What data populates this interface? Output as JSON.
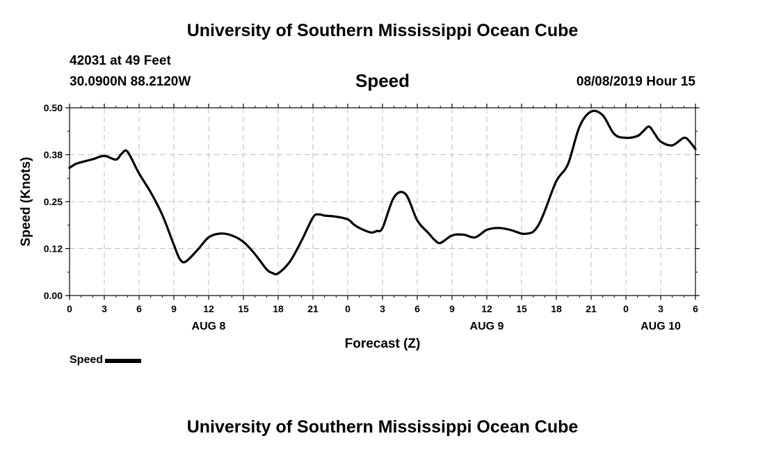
{
  "header": {
    "title": "University of Southern Mississippi Ocean Cube",
    "station": "42031 at 49 Feet",
    "coords": "30.0900N 88.2120W",
    "parameter": "Speed",
    "datetime": "08/08/2019 Hour 15"
  },
  "footer": {
    "title": "University of Southern Mississippi Ocean Cube"
  },
  "legend": {
    "label": "Speed",
    "color": "#000000"
  },
  "chart_data": {
    "type": "line",
    "xlabel": "Forecast (Z)",
    "ylabel": "Speed (Knots)",
    "xlim": [
      0,
      54
    ],
    "ylim": [
      0,
      0.5
    ],
    "grid": true,
    "y_ticks": [
      "0.00",
      "0.12",
      "0.25",
      "0.38",
      "0.50"
    ],
    "x_ticks": [
      "0",
      "3",
      "6",
      "9",
      "12",
      "15",
      "18",
      "21",
      "0",
      "3",
      "6",
      "9",
      "12",
      "15",
      "18",
      "21",
      "0",
      "3",
      "6"
    ],
    "date_labels": [
      {
        "label": "AUG 8",
        "x": 12
      },
      {
        "label": "AUG 9",
        "x": 36
      },
      {
        "label": "AUG 10",
        "x": 51
      }
    ],
    "series": [
      {
        "name": "Speed",
        "color": "#000000",
        "x": [
          0,
          0.5,
          1,
          2,
          3,
          4,
          4.5,
          5,
          6,
          7,
          8,
          9,
          9.5,
          10,
          11,
          12,
          13,
          14,
          15,
          16,
          17,
          17.5,
          18,
          19,
          20,
          21,
          21.5,
          22,
          23,
          24,
          24.5,
          25,
          26,
          26.5,
          27,
          28,
          29,
          30,
          31,
          31.5,
          32,
          33,
          34,
          35,
          36,
          37,
          38,
          39,
          39.5,
          40,
          40.5,
          41,
          42,
          43,
          44,
          45,
          46,
          47,
          48,
          49,
          49.5,
          50,
          50.5,
          51,
          52,
          53,
          53.5,
          54
        ],
        "y": [
          0.34,
          0.35,
          0.355,
          0.363,
          0.372,
          0.362,
          0.378,
          0.383,
          0.325,
          0.275,
          0.215,
          0.135,
          0.098,
          0.09,
          0.12,
          0.155,
          0.165,
          0.16,
          0.143,
          0.11,
          0.07,
          0.06,
          0.059,
          0.09,
          0.145,
          0.208,
          0.216,
          0.213,
          0.21,
          0.203,
          0.19,
          0.18,
          0.168,
          0.172,
          0.18,
          0.262,
          0.27,
          0.2,
          0.165,
          0.148,
          0.14,
          0.16,
          0.162,
          0.155,
          0.175,
          0.18,
          0.175,
          0.165,
          0.165,
          0.17,
          0.19,
          0.225,
          0.305,
          0.35,
          0.45,
          0.49,
          0.48,
          0.43,
          0.42,
          0.425,
          0.438,
          0.45,
          0.43,
          0.41,
          0.4,
          0.42,
          0.41,
          0.39
        ]
      }
    ]
  }
}
